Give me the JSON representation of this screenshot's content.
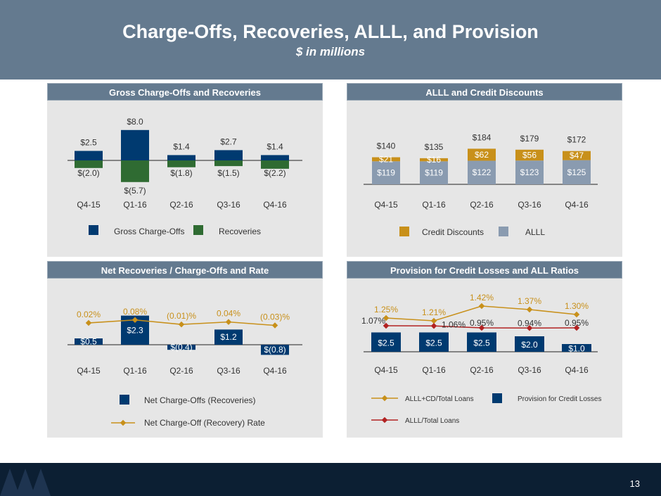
{
  "header": {
    "title": "Charge-Offs, Recoveries, ALLL, and Provision",
    "subtitle": "$ in millions"
  },
  "page_number": "13",
  "colors": {
    "navy": "#003a70",
    "green": "#2f6b32",
    "gold": "#c8901a",
    "gray": "#8a9bb0",
    "red": "#b22222",
    "header": "#647a8f"
  },
  "panels": {
    "gross": {
      "title": "Gross Charge-Offs and Recoveries"
    },
    "alll": {
      "title": "ALLL and Credit Discounts"
    },
    "net": {
      "title": "Net Recoveries / Charge-Offs and Rate"
    },
    "provision": {
      "title": "Provision for Credit Losses and ALL Ratios"
    }
  },
  "chart_data": [
    {
      "type": "bar",
      "title": "Gross Charge-Offs and Recoveries",
      "categories": [
        "Q4-15",
        "Q1-16",
        "Q2-16",
        "Q3-16",
        "Q4-16"
      ],
      "series": [
        {
          "name": "Gross Charge-Offs",
          "values": [
            2.5,
            8.0,
            1.4,
            2.7,
            1.4
          ],
          "labels": [
            "$2.5",
            "$8.0",
            "$1.4",
            "$2.7",
            "$1.4"
          ]
        },
        {
          "name": "Recoveries",
          "values": [
            -2.0,
            -5.7,
            -1.8,
            -1.5,
            -2.2
          ],
          "labels": [
            "$(2.0)",
            "$(5.7)",
            "$(1.8)",
            "$(1.5)",
            "$(2.2)"
          ]
        }
      ],
      "legend": [
        "Gross Charge-Offs",
        "Recoveries"
      ]
    },
    {
      "type": "bar",
      "title": "ALLL and Credit Discounts",
      "categories": [
        "Q4-15",
        "Q1-16",
        "Q2-16",
        "Q3-16",
        "Q4-16"
      ],
      "series": [
        {
          "name": "ALLL",
          "values": [
            119,
            119,
            122,
            123,
            125
          ],
          "labels": [
            "$119",
            "$119",
            "$122",
            "$123",
            "$125"
          ]
        },
        {
          "name": "Credit Discounts",
          "values": [
            21,
            16,
            62,
            56,
            47
          ],
          "labels": [
            "$21",
            "$16",
            "$62",
            "$56",
            "$47"
          ]
        }
      ],
      "totals": [
        "$140",
        "$135",
        "$184",
        "$179",
        "$172"
      ],
      "legend": [
        "Credit Discounts",
        "ALLL"
      ]
    },
    {
      "type": "bar",
      "title": "Net Recoveries / Charge-Offs and Rate",
      "categories": [
        "Q4-15",
        "Q1-16",
        "Q2-16",
        "Q3-16",
        "Q4-16"
      ],
      "series": [
        {
          "name": "Net Charge-Offs (Recoveries)",
          "values": [
            0.5,
            2.3,
            -0.4,
            1.2,
            -0.8
          ],
          "labels": [
            "$0.5",
            "$2.3",
            "$(0.4)",
            "$1.2",
            "$(0.8)"
          ]
        },
        {
          "name": "Net Charge-Off (Recovery) Rate",
          "values": [
            0.02,
            0.08,
            -0.01,
            0.04,
            -0.03
          ],
          "labels": [
            "0.02%",
            "0.08%",
            "(0.01)%",
            "0.04%",
            "(0.03)%"
          ]
        }
      ],
      "legend": [
        "Net Charge-Offs (Recoveries)",
        "Net Charge-Off (Recovery) Rate"
      ]
    },
    {
      "type": "bar",
      "title": "Provision for Credit Losses and ALL Ratios",
      "categories": [
        "Q4-15",
        "Q1-16",
        "Q2-16",
        "Q3-16",
        "Q4-16"
      ],
      "series": [
        {
          "name": "Provision for Credit Losses",
          "values": [
            2.5,
            2.5,
            2.5,
            2.0,
            1.0
          ],
          "labels": [
            "$2.5",
            "$2.5",
            "$2.5",
            "$2.0",
            "$1.0"
          ]
        },
        {
          "name": "ALLL+CD/Total Loans",
          "values": [
            1.25,
            1.21,
            1.42,
            1.37,
            1.3
          ],
          "labels": [
            "1.25%",
            "1.21%",
            "1.42%",
            "1.37%",
            "1.30%"
          ]
        },
        {
          "name": "ALLL/Total Loans",
          "values": [
            1.07,
            1.06,
            0.95,
            0.94,
            0.95
          ],
          "labels": [
            "1.07%",
            "1.06%",
            "0.95%",
            "0.94%",
            "0.95%"
          ]
        }
      ],
      "legend": [
        "ALLL+CD/Total Loans",
        "Provision for Credit Losses",
        "ALLL/Total Loans"
      ]
    }
  ]
}
